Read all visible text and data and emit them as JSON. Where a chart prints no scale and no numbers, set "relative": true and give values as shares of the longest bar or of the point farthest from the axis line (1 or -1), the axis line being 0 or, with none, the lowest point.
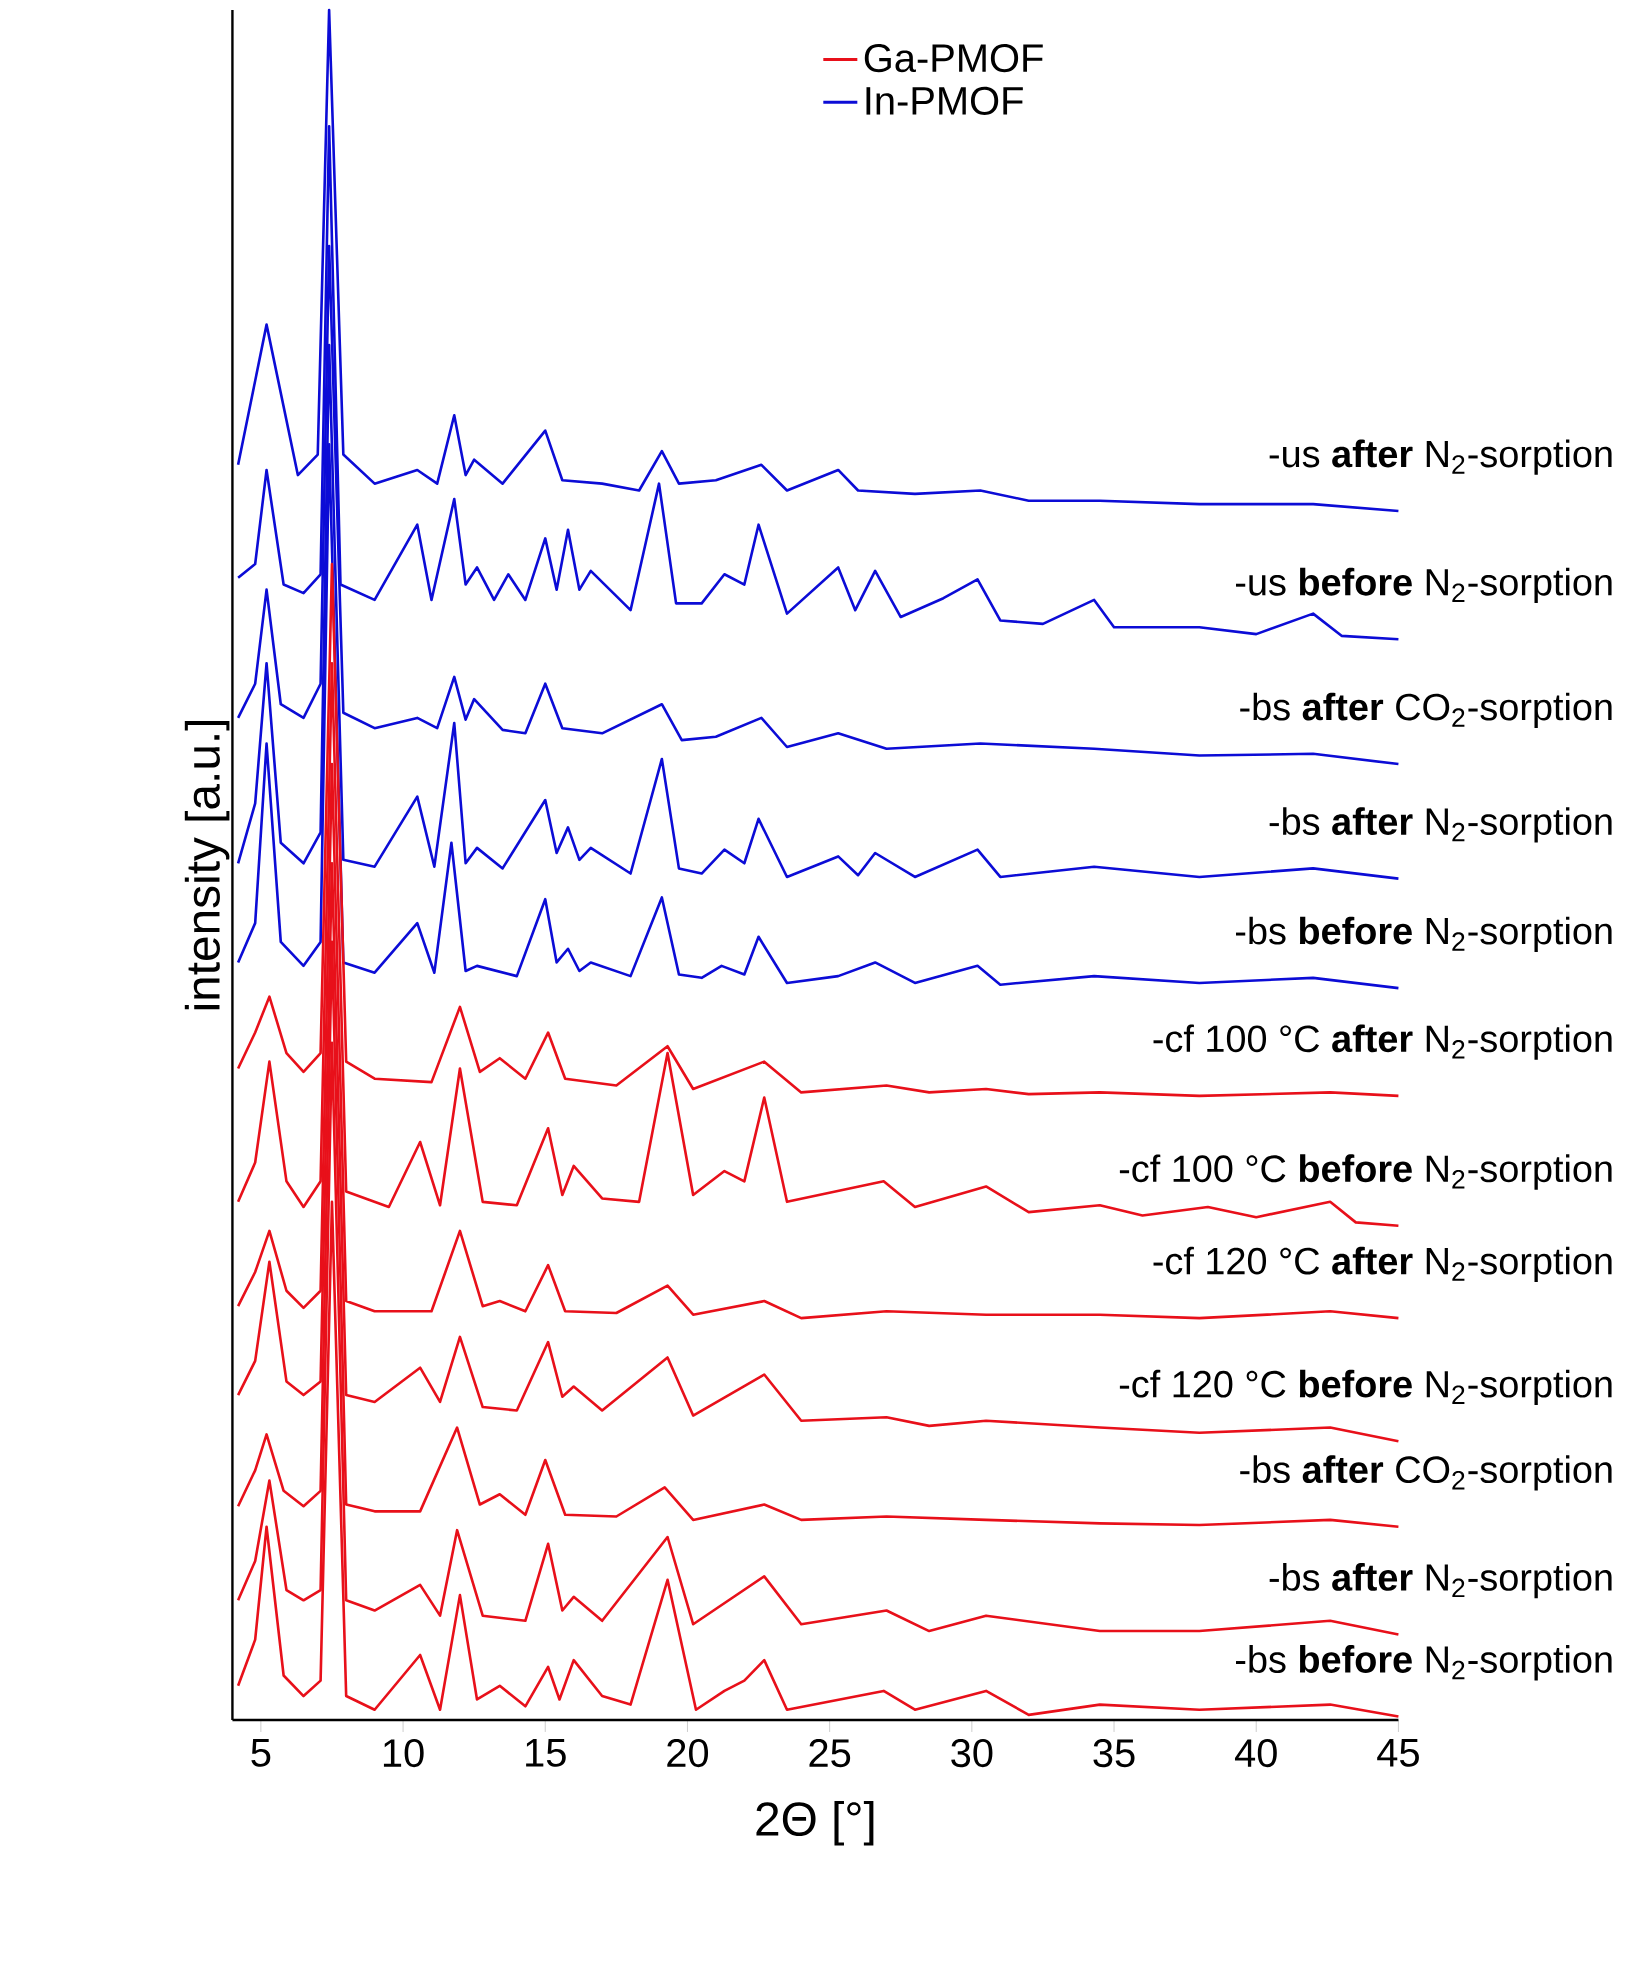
{
  "chart_data": {
    "type": "line",
    "relative": true,
    "xlabel": "2Θ [°]",
    "ylabel": "intensity [a.u.]",
    "xlim": [
      4,
      45
    ],
    "xticks": [
      5,
      10,
      15,
      20,
      25,
      30,
      35,
      40,
      45
    ],
    "annotations": [
      "Ga-PMOF",
      "In-PMOF"
    ],
    "marker": "none",
    "line_style": "solid",
    "series": [
      {
        "name": "-bs **before** N$_{2}$-sorption",
        "color": "#e8101a",
        "x": [
          4.2,
          4.8,
          5.2,
          5.8,
          6.5,
          7.1,
          7.5,
          8.0,
          9,
          10.6,
          11.3,
          12.0,
          12.6,
          13.4,
          14.3,
          15.1,
          15.5,
          16.0,
          17,
          18,
          19.3,
          20.3,
          21.3,
          22.0,
          22.7,
          23.5,
          26.9,
          28,
          30.5,
          32,
          34.5,
          38,
          42.6,
          45
        ],
        "values": [
          0.02,
          0.047,
          0.113,
          0.026,
          0.014,
          0.023,
          0.303,
          0.014,
          0.006,
          0.038,
          0.006,
          0.073,
          0.012,
          0.02,
          0.008,
          0.031,
          0.012,
          0.035,
          0.014,
          0.009,
          0.082,
          0.006,
          0.017,
          0.023,
          0.035,
          0.006,
          0.017,
          0.006,
          0.017,
          0.003,
          0.009,
          0.006,
          0.009,
          0.002
        ]
      },
      {
        "name": "-bs **after** N$_{2}$-sorption",
        "color": "#e8101a",
        "x": [
          4.2,
          4.8,
          5.3,
          5.9,
          6.5,
          7.1,
          7.5,
          8.0,
          9,
          10.6,
          11.3,
          11.9,
          12.8,
          14.3,
          15.1,
          15.6,
          16.0,
          17,
          19.3,
          20.2,
          22.7,
          24,
          27.0,
          28.5,
          30.5,
          34.5,
          38,
          42.6,
          45
        ],
        "values": [
          0.07,
          0.093,
          0.14,
          0.076,
          0.07,
          0.076,
          0.396,
          0.07,
          0.064,
          0.079,
          0.061,
          0.111,
          0.061,
          0.058,
          0.103,
          0.064,
          0.072,
          0.058,
          0.107,
          0.056,
          0.084,
          0.056,
          0.064,
          0.052,
          0.061,
          0.052,
          0.052,
          0.058,
          0.05
        ]
      },
      {
        "name": "-bs **after** CO$_{2}$-sorption",
        "color": "#e8101a",
        "x": [
          4.2,
          4.8,
          5.2,
          5.8,
          6.5,
          7.1,
          7.5,
          8.0,
          9,
          10.6,
          11.9,
          12.7,
          13.4,
          14.3,
          15.0,
          15.7,
          17.5,
          19.2,
          20.2,
          22.7,
          24,
          27.0,
          30.5,
          34.5,
          38,
          42.6,
          45
        ],
        "values": [
          0.125,
          0.146,
          0.167,
          0.134,
          0.125,
          0.134,
          0.455,
          0.126,
          0.122,
          0.122,
          0.171,
          0.126,
          0.132,
          0.12,
          0.152,
          0.12,
          0.119,
          0.136,
          0.117,
          0.126,
          0.117,
          0.119,
          0.117,
          0.115,
          0.114,
          0.117,
          0.113
        ]
      },
      {
        "name": "-cf 120 °C **before** N$_{2}$-sorption",
        "color": "#e8101a",
        "x": [
          4.2,
          4.8,
          5.3,
          5.9,
          6.5,
          7.1,
          7.5,
          8.0,
          9,
          10.6,
          11.3,
          12.0,
          12.8,
          14,
          15.1,
          15.6,
          16.0,
          17,
          19.3,
          20.2,
          22.7,
          24,
          27.0,
          28.5,
          30.5,
          34.5,
          38,
          42.6,
          45
        ],
        "values": [
          0.19,
          0.21,
          0.268,
          0.198,
          0.19,
          0.198,
          0.501,
          0.19,
          0.186,
          0.206,
          0.186,
          0.224,
          0.183,
          0.181,
          0.221,
          0.189,
          0.195,
          0.181,
          0.212,
          0.178,
          0.202,
          0.175,
          0.177,
          0.172,
          0.175,
          0.171,
          0.168,
          0.171,
          0.163
        ]
      },
      {
        "name": "-cf 120 °C **after** N$_{2}$-sorption",
        "color": "#e8101a",
        "x": [
          4.2,
          4.8,
          5.3,
          5.9,
          6.5,
          7.1,
          7.5,
          8.0,
          9,
          11,
          12.0,
          12.8,
          13.4,
          14.3,
          15.1,
          15.7,
          17.5,
          19.3,
          20.2,
          22.7,
          24,
          27.0,
          30.5,
          34.5,
          38,
          42.6,
          45
        ],
        "values": [
          0.242,
          0.262,
          0.286,
          0.251,
          0.241,
          0.251,
          0.559,
          0.245,
          0.239,
          0.239,
          0.286,
          0.242,
          0.245,
          0.239,
          0.266,
          0.239,
          0.238,
          0.254,
          0.237,
          0.245,
          0.235,
          0.239,
          0.237,
          0.237,
          0.235,
          0.239,
          0.235
        ]
      },
      {
        "name": "-cf 100 °C **before** N$_{2}$-sorption",
        "color": "#e8101a",
        "x": [
          4.2,
          4.8,
          5.3,
          5.9,
          6.5,
          7.1,
          7.5,
          8.0,
          9.5,
          10.6,
          11.3,
          12.0,
          12.8,
          14,
          15.1,
          15.6,
          16.0,
          17,
          18.3,
          19.3,
          20.2,
          21.3,
          22.0,
          22.7,
          23.5,
          26.9,
          28,
          30.5,
          32,
          34.5,
          36,
          38.3,
          40,
          42.6,
          43.5,
          45
        ],
        "values": [
          0.303,
          0.326,
          0.385,
          0.315,
          0.3,
          0.315,
          0.618,
          0.309,
          0.3,
          0.338,
          0.301,
          0.381,
          0.303,
          0.301,
          0.346,
          0.307,
          0.324,
          0.305,
          0.303,
          0.39,
          0.307,
          0.321,
          0.315,
          0.364,
          0.303,
          0.315,
          0.3,
          0.312,
          0.297,
          0.301,
          0.295,
          0.3,
          0.294,
          0.303,
          0.291,
          0.289
        ]
      },
      {
        "name": "-cf 100 °C **after** N$_{2}$-sorption",
        "color": "#e8101a",
        "x": [
          4.2,
          4.8,
          5.3,
          5.9,
          6.5,
          7.1,
          7.5,
          8.0,
          9,
          11,
          12.0,
          12.7,
          13.4,
          14.3,
          15.1,
          15.7,
          17.5,
          19.3,
          20.2,
          22.7,
          24,
          27.0,
          28.5,
          30.5,
          32,
          34.5,
          38,
          42.6,
          45
        ],
        "values": [
          0.381,
          0.402,
          0.423,
          0.39,
          0.379,
          0.39,
          0.676,
          0.385,
          0.375,
          0.373,
          0.417,
          0.379,
          0.387,
          0.375,
          0.402,
          0.375,
          0.371,
          0.394,
          0.369,
          0.385,
          0.367,
          0.371,
          0.367,
          0.369,
          0.366,
          0.367,
          0.365,
          0.367,
          0.365
        ]
      },
      {
        "name": "-bs **before** N$_{2}$-sorption",
        "color": "#0c0cd6",
        "x": [
          4.2,
          4.8,
          5.2,
          5.7,
          6.5,
          7.1,
          7.4,
          7.9,
          9,
          10.5,
          11.1,
          11.7,
          12.2,
          12.6,
          14,
          15.0,
          15.4,
          15.8,
          16.2,
          16.6,
          18,
          19.1,
          19.7,
          20.5,
          21.2,
          22.0,
          22.5,
          23.5,
          25.3,
          26.6,
          28,
          30.2,
          31,
          34.3,
          38,
          42,
          45
        ],
        "values": [
          0.443,
          0.466,
          0.571,
          0.455,
          0.441,
          0.455,
          0.746,
          0.443,
          0.437,
          0.466,
          0.437,
          0.513,
          0.438,
          0.441,
          0.435,
          0.48,
          0.443,
          0.451,
          0.438,
          0.443,
          0.435,
          0.481,
          0.436,
          0.434,
          0.441,
          0.436,
          0.458,
          0.431,
          0.435,
          0.443,
          0.431,
          0.441,
          0.43,
          0.435,
          0.431,
          0.434,
          0.428
        ]
      },
      {
        "name": "-bs **after** N$_{2}$-sorption",
        "color": "#0c0cd6",
        "x": [
          4.2,
          4.8,
          5.2,
          5.7,
          6.5,
          7.1,
          7.4,
          7.9,
          9,
          10.5,
          11.1,
          11.8,
          12.2,
          12.6,
          13.5,
          15.0,
          15.4,
          15.8,
          16.2,
          16.6,
          18,
          19.1,
          19.7,
          20.5,
          21.3,
          22.0,
          22.5,
          23.5,
          25.3,
          26.0,
          26.6,
          28,
          30.2,
          31,
          34.3,
          38,
          42,
          45
        ],
        "values": [
          0.501,
          0.536,
          0.618,
          0.513,
          0.501,
          0.519,
          0.804,
          0.503,
          0.499,
          0.54,
          0.499,
          0.583,
          0.501,
          0.51,
          0.498,
          0.538,
          0.507,
          0.522,
          0.503,
          0.51,
          0.495,
          0.562,
          0.498,
          0.495,
          0.509,
          0.501,
          0.527,
          0.493,
          0.505,
          0.494,
          0.507,
          0.493,
          0.509,
          0.493,
          0.499,
          0.493,
          0.498,
          0.492
        ]
      },
      {
        "name": "-bs **after** CO$_{2}$-sorption",
        "color": "#0c0cd6",
        "x": [
          4.2,
          4.8,
          5.2,
          5.7,
          6.5,
          7.1,
          7.4,
          7.9,
          9,
          10.5,
          11.2,
          11.8,
          12.2,
          12.5,
          13.5,
          14.3,
          15.0,
          15.6,
          17,
          19.1,
          19.8,
          21,
          22.6,
          23.5,
          25.3,
          27,
          30.3,
          34.3,
          38,
          42,
          45
        ],
        "values": [
          0.586,
          0.606,
          0.661,
          0.594,
          0.586,
          0.606,
          0.862,
          0.589,
          0.58,
          0.586,
          0.58,
          0.61,
          0.585,
          0.597,
          0.579,
          0.577,
          0.606,
          0.58,
          0.577,
          0.594,
          0.573,
          0.575,
          0.586,
          0.569,
          0.577,
          0.568,
          0.571,
          0.568,
          0.564,
          0.565,
          0.559
        ]
      },
      {
        "name": "-us **before** N$_{2}$-sorption",
        "color": "#0c0cd6",
        "x": [
          4.2,
          4.8,
          5.2,
          5.8,
          6.5,
          7.1,
          7.4,
          7.8,
          9,
          10.5,
          11.0,
          11.8,
          12.2,
          12.6,
          13.2,
          13.7,
          14.3,
          15.0,
          15.4,
          15.8,
          16.2,
          16.6,
          18,
          19.0,
          19.6,
          20.5,
          21.3,
          22.0,
          22.5,
          23.5,
          25.3,
          25.9,
          26.6,
          27.5,
          29,
          30.2,
          31,
          32.5,
          34.3,
          35,
          38,
          40,
          42,
          43,
          45
        ],
        "values": [
          0.668,
          0.676,
          0.731,
          0.664,
          0.659,
          0.67,
          0.932,
          0.664,
          0.655,
          0.699,
          0.655,
          0.714,
          0.664,
          0.674,
          0.655,
          0.67,
          0.655,
          0.691,
          0.661,
          0.696,
          0.661,
          0.672,
          0.649,
          0.723,
          0.653,
          0.653,
          0.67,
          0.664,
          0.699,
          0.647,
          0.674,
          0.649,
          0.672,
          0.645,
          0.656,
          0.667,
          0.643,
          0.641,
          0.655,
          0.639,
          0.639,
          0.635,
          0.647,
          0.634,
          0.632
        ]
      },
      {
        "name": "-us **after** N$_{2}$-sorption",
        "color": "#0c0cd6",
        "x": [
          4.2,
          5.2,
          6.3,
          7.0,
          7.4,
          7.9,
          9,
          10.5,
          11.2,
          11.8,
          12.2,
          12.5,
          13.5,
          15.0,
          15.6,
          17,
          18.3,
          19.1,
          19.7,
          21,
          22.6,
          23.5,
          25.3,
          26,
          28,
          30.3,
          32,
          34.5,
          38,
          42,
          45
        ],
        "values": [
          0.734,
          0.816,
          0.728,
          0.74,
          1,
          0.74,
          0.723,
          0.731,
          0.723,
          0.763,
          0.728,
          0.737,
          0.723,
          0.754,
          0.725,
          0.723,
          0.719,
          0.742,
          0.723,
          0.725,
          0.734,
          0.719,
          0.731,
          0.719,
          0.717,
          0.719,
          0.713,
          0.713,
          0.711,
          0.711,
          0.707
        ]
      }
    ]
  }
}
